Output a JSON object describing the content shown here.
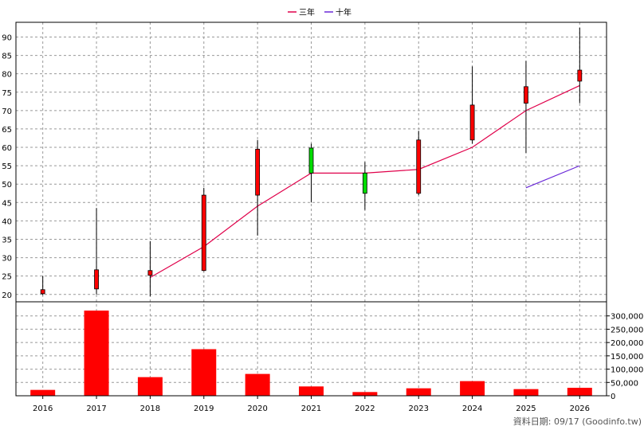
{
  "chart_data": {
    "type": "candlestick",
    "legend": {
      "placement": "top-center",
      "items": [
        {
          "name": "三年",
          "color": "#e0004a"
        },
        {
          "name": "十年",
          "color": "#6a28d8"
        }
      ]
    },
    "categories": [
      "2016",
      "2017",
      "2018",
      "2019",
      "2020",
      "2021",
      "2022",
      "2023",
      "2024",
      "2025",
      "2026"
    ],
    "price_axis": {
      "ylim": [
        18,
        94
      ],
      "ticks": [
        20,
        25,
        30,
        35,
        40,
        45,
        50,
        55,
        60,
        65,
        70,
        75,
        80,
        85,
        90
      ]
    },
    "volume_axis": {
      "ylim": [
        0,
        350000
      ],
      "ticks": [
        "0",
        "50,000",
        "100,000",
        "150,000",
        "200,000",
        "250,000",
        "300,000"
      ]
    },
    "candles": [
      {
        "year": "2016",
        "open": 20.2,
        "close": 21.3,
        "high": 25.0,
        "low": 19.8
      },
      {
        "year": "2017",
        "open": 21.5,
        "close": 26.7,
        "high": 43.5,
        "low": 20.0
      },
      {
        "year": "2018",
        "open": 25.2,
        "close": 26.5,
        "high": 34.5,
        "low": 19.5
      },
      {
        "year": "2019",
        "open": 26.5,
        "close": 47.0,
        "high": 49.0,
        "low": 26.3
      },
      {
        "year": "2020",
        "open": 47.0,
        "close": 59.5,
        "high": 62.0,
        "low": 36.0
      },
      {
        "year": "2021",
        "open": 59.8,
        "close": 53.0,
        "high": 61.0,
        "low": 45.0
      },
      {
        "year": "2022",
        "open": 53.0,
        "close": 47.5,
        "high": 56.0,
        "low": 43.0
      },
      {
        "year": "2023",
        "open": 47.5,
        "close": 62.0,
        "high": 64.5,
        "low": 47.0
      },
      {
        "year": "2024",
        "open": 62.0,
        "close": 71.5,
        "high": 82.0,
        "low": 61.0
      },
      {
        "year": "2025",
        "open": 72.0,
        "close": 76.5,
        "high": 83.5,
        "low": 58.5
      },
      {
        "year": "2026",
        "open": 78.0,
        "close": 81.0,
        "high": 92.5,
        "low": 72.0
      }
    ],
    "series": [
      {
        "name": "三年",
        "color": "#e0004a",
        "x": [
          "2018",
          "2019",
          "2020",
          "2021",
          "2022",
          "2023",
          "2024",
          "2025",
          "2026"
        ],
        "values": [
          24.6,
          33.0,
          44.0,
          53.0,
          53.0,
          54.0,
          60.0,
          70.0,
          76.8
        ]
      },
      {
        "name": "十年",
        "color": "#6a28d8",
        "x": [
          "2025",
          "2026"
        ],
        "values": [
          49.0,
          55.0
        ]
      }
    ],
    "volume": [
      22000,
      320000,
      70000,
      175000,
      82000,
      35000,
      14000,
      28000,
      55000,
      25000,
      30000
    ],
    "colors": {
      "up": "#ff0000",
      "down": "#00dd00",
      "volume": "#ff0000"
    },
    "grid": true
  },
  "footer": {
    "source_text": "資料日期: 09/17  (Goodinfo.tw)"
  }
}
